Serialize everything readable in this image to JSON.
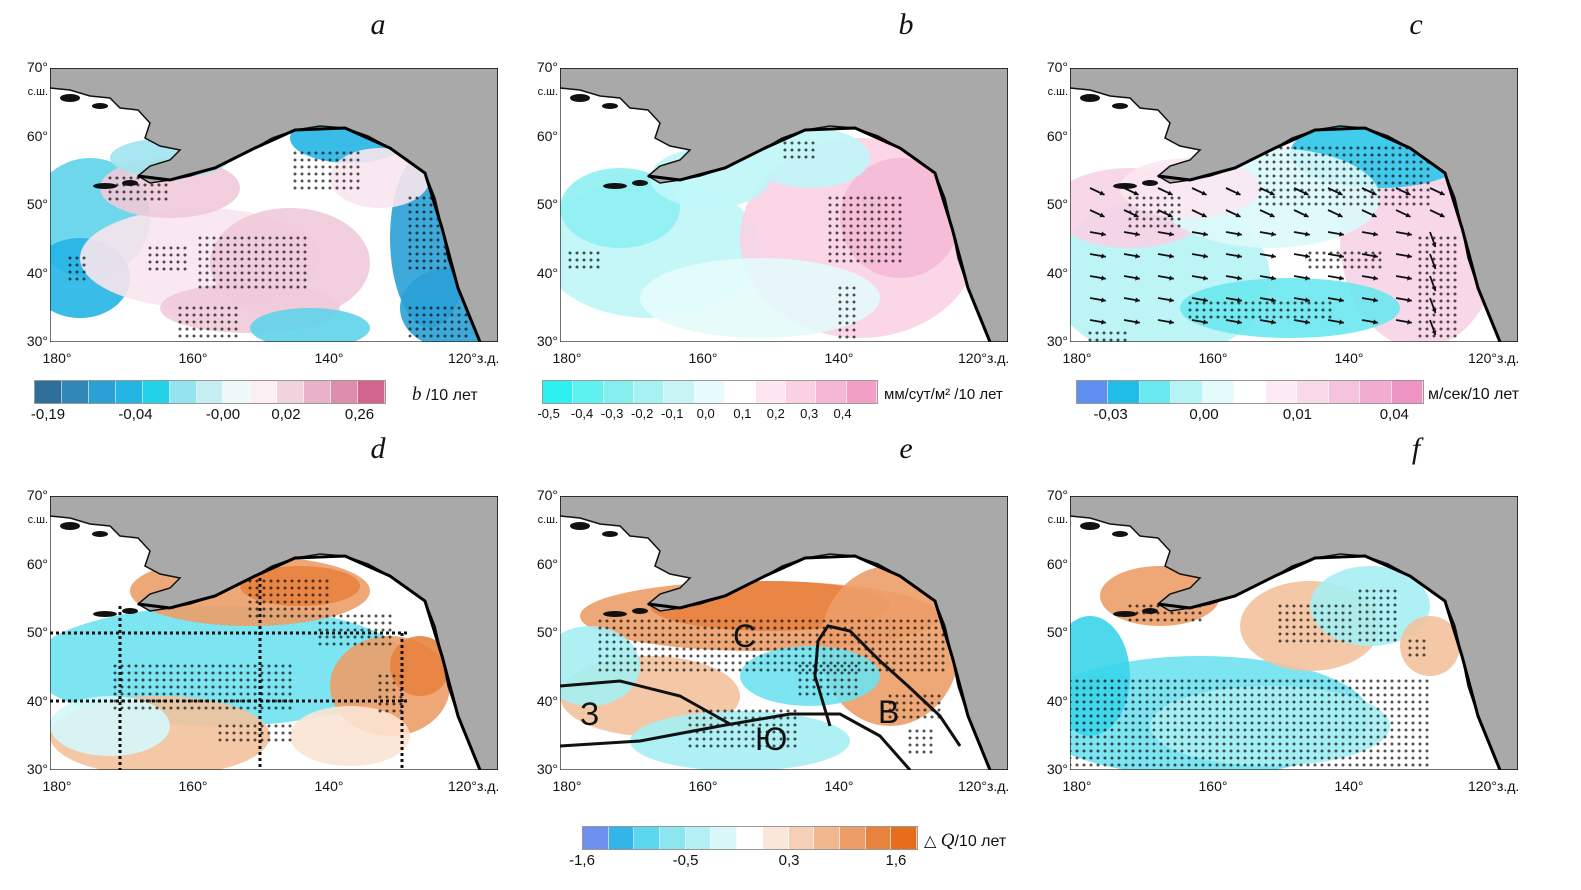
{
  "panels": [
    {
      "letter": "a"
    },
    {
      "letter": "b"
    },
    {
      "letter": "c"
    },
    {
      "letter": "d"
    },
    {
      "letter": "e"
    },
    {
      "letter": "f"
    }
  ],
  "axes": {
    "lat_labels": [
      "70°",
      "60°",
      "50°",
      "40°",
      "30°"
    ],
    "lat_unit": "с.ш.",
    "lon_labels": [
      "180°",
      "160°",
      "140°"
    ],
    "lon_last": "120°з.д."
  },
  "colorbars": {
    "a": {
      "ticks": [
        "-0,19",
        "-0,04",
        "-0,00",
        "0,02",
        "0,26"
      ],
      "unit_italic": "b",
      "unit_rest": " /10 лет",
      "colors": [
        "#2e6f98",
        "#2f88b8",
        "#2aa0d6",
        "#23b5e6",
        "#22d3e8",
        "#93e4ee",
        "#c7eff3",
        "#eef8fa",
        "#fbeff3",
        "#f2d3dd",
        "#e8b3c6",
        "#dc8eab",
        "#d1658c"
      ]
    },
    "b": {
      "ticks": [
        "-0,5",
        "-0,4",
        "-0,3",
        "-0,2",
        "-0,1",
        "0,0",
        "0,1",
        "0,2",
        "0,3",
        "0,4"
      ],
      "unit": "мм/сут/м² /10 лет",
      "colors": [
        "#2ef0f0",
        "#5ff0f0",
        "#85eff0",
        "#a8f1f2",
        "#c7f5f6",
        "#e6fbfb",
        "#ffffff",
        "#fde6f0",
        "#fad0e2",
        "#f6b7d4",
        "#f29fc6"
      ]
    },
    "c": {
      "ticks": [
        "-0,03",
        "0,00",
        "0,01",
        "0,04"
      ],
      "unit": "м/сек/10 лет",
      "colors": [
        "#5f8ff0",
        "#1fbde8",
        "#6ae8ef",
        "#b6f3f5",
        "#e3fafb",
        "#ffffff",
        "#fcebf3",
        "#f9d8e8",
        "#f5c3dc",
        "#f2acd0",
        "#ee94c4"
      ]
    },
    "e": {
      "ticks": [
        "-1,6",
        "-0,5",
        "0,3",
        "1,6"
      ],
      "unit_prefix": "△ ",
      "unit_italic": "Q",
      "unit_rest": "/10 лет",
      "colors": [
        "#6c8ff0",
        "#33b5ea",
        "#5bd8ee",
        "#8ce6f0",
        "#b4eff4",
        "#d9f7f9",
        "#ffffff",
        "#fbe7da",
        "#f6d0b6",
        "#f1b78f",
        "#ec9d68",
        "#e8833f",
        "#e56d1c"
      ]
    }
  },
  "region_labels": {
    "north": "С",
    "west": "З",
    "south": "Ю",
    "east": "В"
  }
}
